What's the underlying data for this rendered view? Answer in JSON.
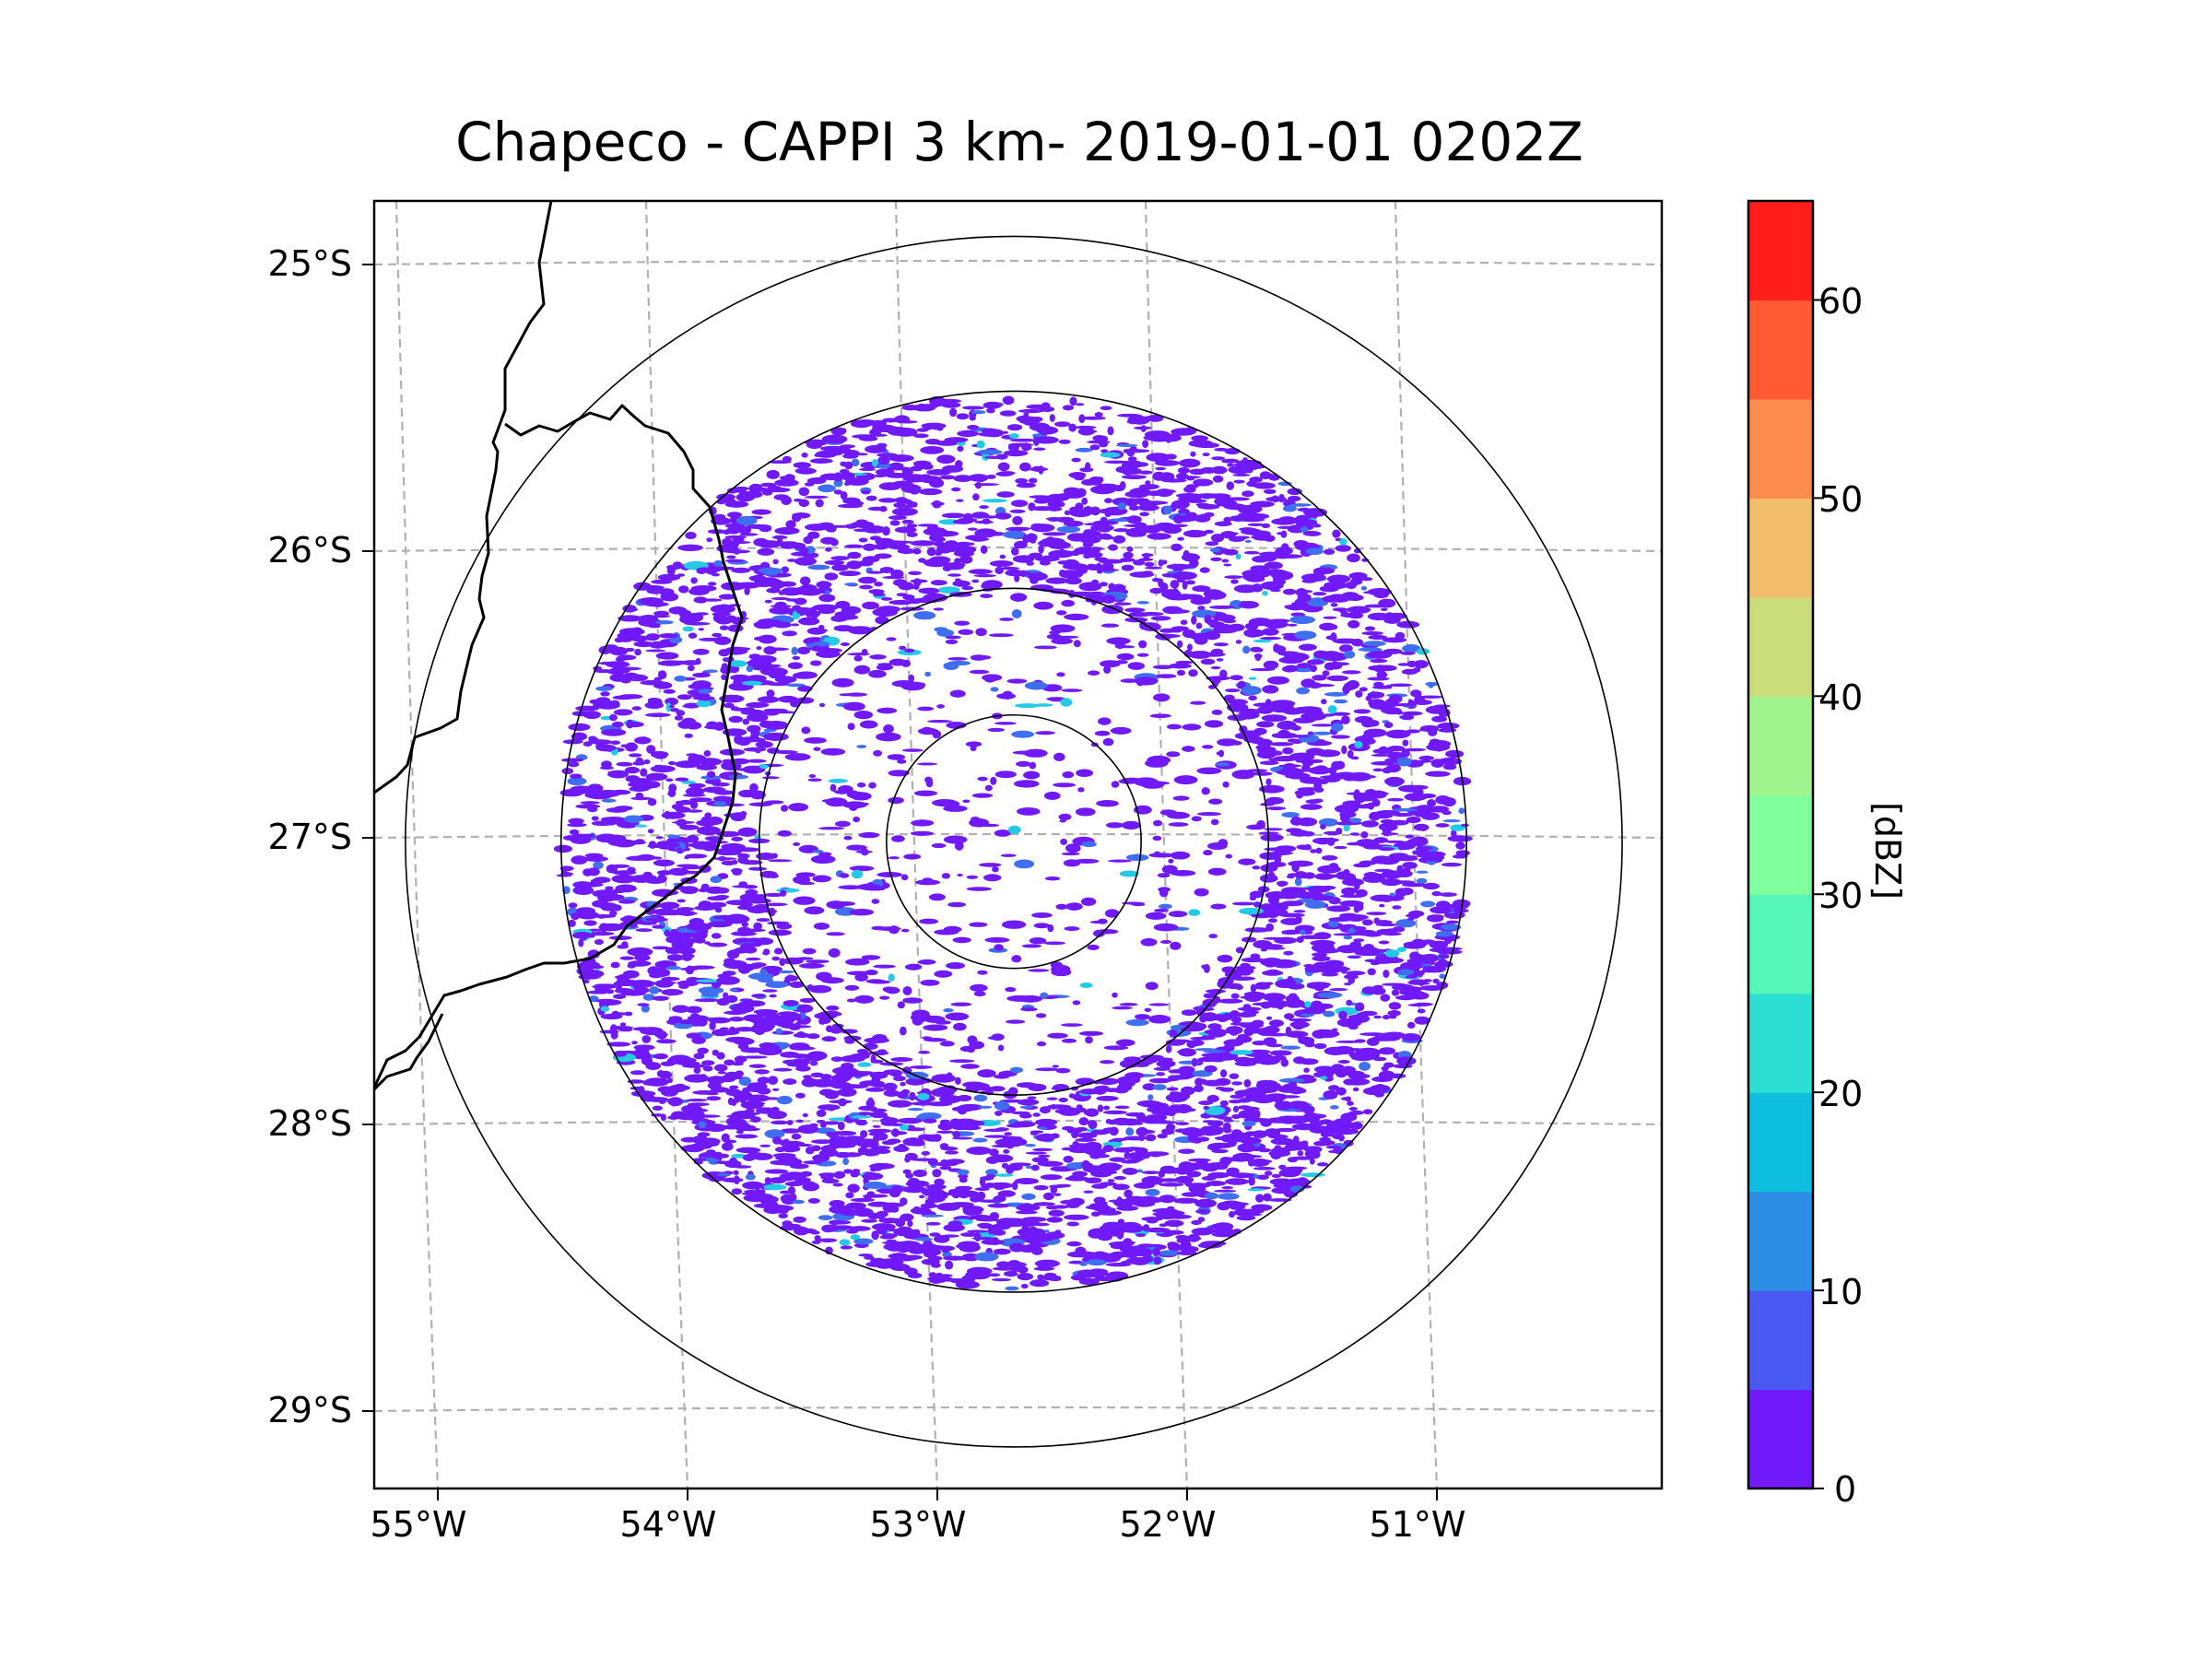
{
  "title": "Chapeco - CAPPI 3 km- 2019-01-01 0202Z",
  "map": {
    "lat_ticks": [
      "25°S",
      "26°S",
      "27°S",
      "28°S",
      "29°S"
    ],
    "lon_ticks": [
      "55°W",
      "54°W",
      "53°W",
      "52°W",
      "51°W"
    ],
    "radar_center": {
      "lon": -52.62,
      "lat": -27.02
    },
    "range_rings_deg": [
      0.45,
      0.9,
      1.6,
      2.15
    ],
    "data_ring_extent_deg": 1.6,
    "gridlines": "dashed grey",
    "borders": "black state/country boundaries"
  },
  "colorbar": {
    "label": "[dBZ]",
    "min": 0,
    "max": 65,
    "step": 5,
    "tick_labels": [
      "0",
      "10",
      "20",
      "30",
      "40",
      "50",
      "60"
    ],
    "colors": [
      "#7019fb",
      "#4a59f1",
      "#2d8ee6",
      "#0fbfe0",
      "#2ddfd3",
      "#55f6b8",
      "#7fff9e",
      "#9ff48b",
      "#cbdc7a",
      "#f2bd6b",
      "#ff8c4f",
      "#ff5a33",
      "#ff1e1a"
    ]
  },
  "reflectivity": {
    "dominant_color": "#7019fb",
    "weak_echo_color": "#3f6ef0",
    "strong_spots_color": "#24c9e6"
  }
}
